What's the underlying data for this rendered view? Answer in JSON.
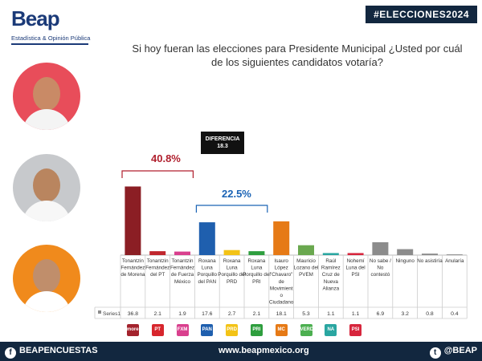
{
  "brand": {
    "name": "Beap",
    "tagline": "Estadística & Opinión Pública"
  },
  "hashtag": "#ELECCIONES2024",
  "question": {
    "line1": "Si hoy fueran las elecciones para Presidente Municipal ¿Usted por cuál",
    "line2": "de los siguientes candidatos votaría?"
  },
  "difference": {
    "label": "DIFERENCIA",
    "value": "18.3"
  },
  "highlights": {
    "left": "40.8%",
    "right": "22.5%"
  },
  "footer": {
    "facebook": "BEAPENCUESTAS",
    "website": "www.beapmexico.org",
    "twitter": "@BEAP"
  },
  "colors": {
    "navy": "#12273f",
    "morena": "#8b1e24",
    "pan": "#1f5fae",
    "mc": "#e67a16",
    "pvem": "#6aa84f"
  },
  "chart_data": {
    "type": "bar",
    "series": [
      {
        "name": "Series1",
        "values": [
          36.8,
          2.1,
          1.9,
          17.6,
          2.7,
          2.1,
          18.1,
          5.3,
          1.1,
          1.1,
          6.9,
          3.2,
          0.8,
          0.4
        ]
      }
    ],
    "categories": [
      "Tonantzin Fernández de Morena",
      "Tonantzin Fernández del PT",
      "Tonantzin Fernández de Fuerza México",
      "Roxana Luna Porquillo del PAN",
      "Roxana Luna Porquillo del PRD",
      "Roxana Luna Porquillo del PRI",
      "Isauro López \"Chavaro\" de Movimiento Ciudadano",
      "Mauricio Lozano del PVEM",
      "Raúl Ramírez Cruz de Nueva Alianza",
      "Nohemí Luna del PSI",
      "No sabe / No contestó",
      "Ninguno",
      "No asistiría",
      "Anularía"
    ],
    "labels_short": [
      [
        "Tonantzin",
        "Fernández",
        "de Morena"
      ],
      [
        "Tonantzin",
        "Fernández",
        "del PT"
      ],
      [
        "Tonantzin",
        "Fernández",
        "de Fuerza",
        "México"
      ],
      [
        "Roxana",
        "Luna",
        "Porquillo",
        "del PAN"
      ],
      [
        "Roxana",
        "Luna",
        "Porquillo del",
        "PRD"
      ],
      [
        "Roxana",
        "Luna",
        "Porquillo del",
        "PRI"
      ],
      [
        "Isauro",
        "López",
        "\"Chavaro\"",
        "de",
        "Movimient",
        "o",
        "Ciudadano"
      ],
      [
        "Mauricio",
        "Lozano del",
        "PVEM"
      ],
      [
        "Raúl",
        "Ramírez",
        "Cruz de",
        "Nueva",
        "Alianza"
      ],
      [
        "Nohemí",
        "Luna del",
        "PSI"
      ],
      [
        "No sabe /",
        "No",
        "contestó"
      ],
      [
        "Ninguno"
      ],
      [
        "No asistiría"
      ],
      [
        "Anularía"
      ]
    ],
    "value_labels": [
      "36.8",
      "2.1",
      "1.9",
      "17.6",
      "2.7",
      "2.1",
      "18.1",
      "5.3",
      "1.1",
      "1.1",
      "6.9",
      "3.2",
      "0.8",
      "0.4"
    ],
    "bar_colors": [
      "#8b1e24",
      "#c0262d",
      "#d9408e",
      "#1f5fae",
      "#f3c316",
      "#2e9e3e",
      "#e67a16",
      "#6aa84f",
      "#2aa6a1",
      "#d7263d",
      "#8c8c8c",
      "#8c8c8c",
      "#8c8c8c",
      "#8c8c8c"
    ],
    "party_logos": [
      {
        "text": "morena",
        "color": "#a3232d"
      },
      {
        "text": "PT",
        "color": "#d7262d"
      },
      {
        "text": "FXM",
        "color": "#d9408e"
      },
      {
        "text": "PAN",
        "color": "#1f5fae"
      },
      {
        "text": "PRD",
        "color": "#f3c316"
      },
      {
        "text": "PRI",
        "color": "#2e9e3e"
      },
      {
        "text": "MC",
        "color": "#e67a16"
      },
      {
        "text": "VERDE",
        "color": "#4caf50"
      },
      {
        "text": "NA",
        "color": "#2aa6a1"
      },
      {
        "text": "PSI",
        "color": "#d7263d"
      }
    ],
    "ylim": [
      0,
      40
    ]
  }
}
